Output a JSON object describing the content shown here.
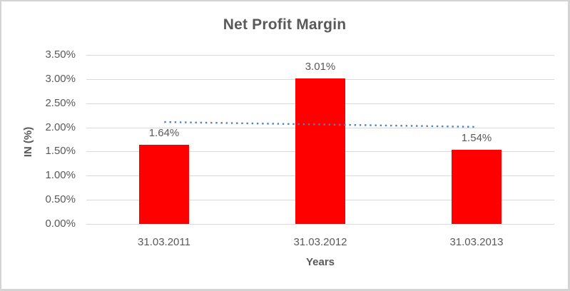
{
  "chart_data": {
    "type": "bar",
    "title": "Net Profit Margin",
    "categories": [
      "31.03.2011",
      "31.03.2012",
      "31.03.2013"
    ],
    "values": [
      1.64,
      3.01,
      1.54
    ],
    "data_labels": [
      "1.64%",
      "3.01%",
      "1.54%"
    ],
    "xlabel": "Years",
    "ylabel": "IN (%)",
    "ylim": [
      0,
      3.5
    ],
    "y_tick_step": 0.5,
    "y_tick_labels": [
      "0.00%",
      "0.50%",
      "1.00%",
      "1.50%",
      "2.00%",
      "2.50%",
      "3.00%",
      "3.50%"
    ],
    "grid": true,
    "legend_position": "none",
    "bar_color": "#FF0000",
    "trendline": {
      "type": "linear",
      "line_style": "dotted",
      "color": "#4F81BD",
      "start_value": 2.11,
      "end_value": 2.01
    },
    "colors": {
      "title_text": "#595959",
      "axis_title_text": "#595959",
      "tick_label_text": "#595959",
      "data_label_text": "#595959",
      "gridlines": "#D9D9D9",
      "frame_border": "#D4D4D4",
      "background": "#FFFFFF"
    }
  }
}
